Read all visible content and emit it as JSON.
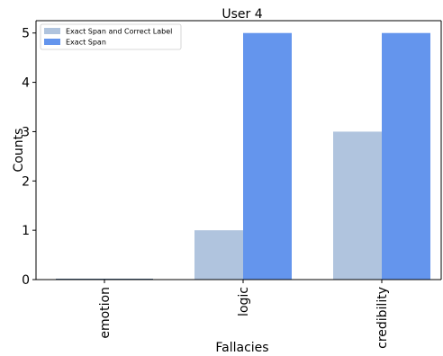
{
  "chart_data": {
    "type": "bar",
    "title": "User 4",
    "xlabel": "Fallacies",
    "ylabel": "Counts",
    "categories": [
      "emotion",
      "logic",
      "credibility"
    ],
    "series": [
      {
        "name": "Exact Span and Correct Label",
        "values": [
          0,
          1,
          3
        ],
        "color": "#b0c4de"
      },
      {
        "name": "Exact Span",
        "values": [
          0,
          5,
          5
        ],
        "color": "#6495ed"
      }
    ],
    "ylim": [
      0,
      5.25
    ],
    "yticks": [
      0,
      1,
      2,
      3,
      4,
      5
    ],
    "grid": false,
    "legend_position": "top-left"
  }
}
